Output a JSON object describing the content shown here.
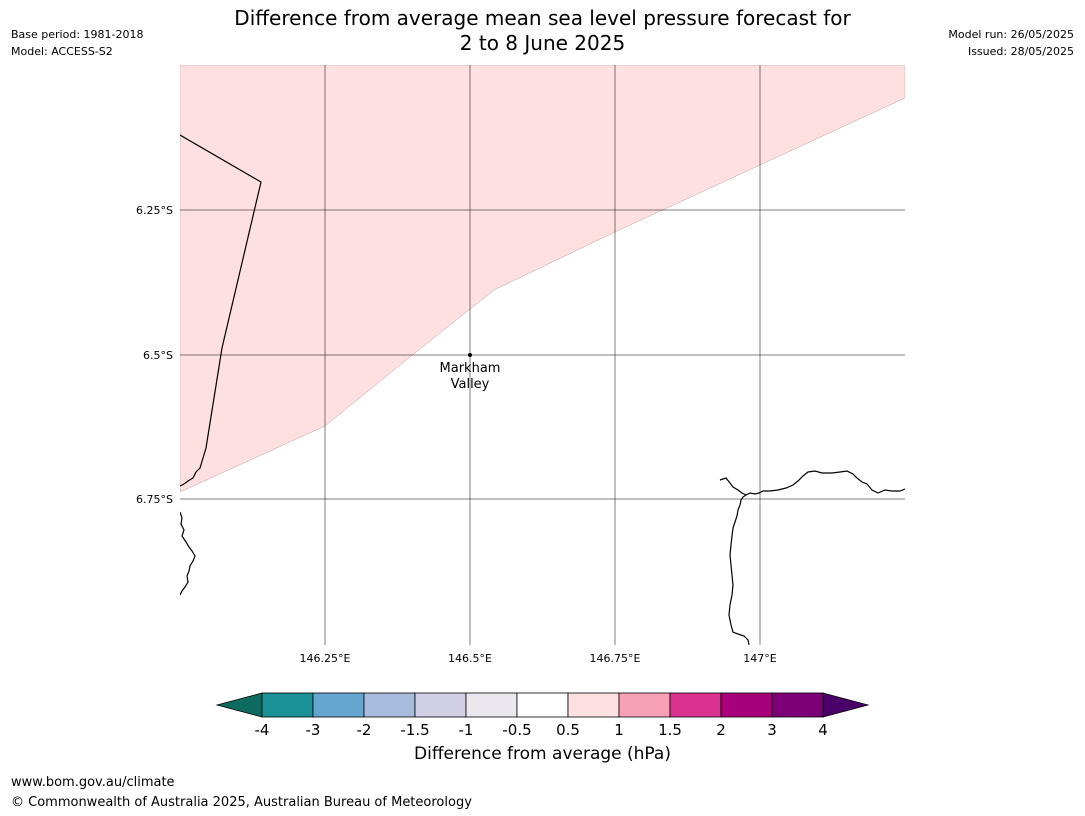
{
  "header": {
    "base_period": "Base period: 1981-2018",
    "model": "Model: ACCESS-S2",
    "model_run": "Model run: 26/05/2025",
    "issued": "Issued: 28/05/2025",
    "title_line1": "Difference from average mean sea level pressure forecast for",
    "title_line2": "2 to 8 June 2025"
  },
  "map": {
    "lon_ticks": [
      "146.25°E",
      "146.5°E",
      "146.75°E",
      "147°E"
    ],
    "lat_ticks": [
      "6.25°S",
      "6.5°S",
      "6.75°S"
    ],
    "place": {
      "name_line1": "Markham",
      "name_line2": "Valley"
    },
    "anomaly_fill_color": "#fde0df"
  },
  "colorbar": {
    "label": "Difference from average (hPa)",
    "tick_labels": [
      "-4",
      "-3",
      "-2",
      "-1.5",
      "-1",
      "-0.5",
      "0.5",
      "1",
      "1.5",
      "2",
      "3",
      "4"
    ],
    "colors": [
      "#0d6b60",
      "#1a9196",
      "#64a6cf",
      "#a7bbdc",
      "#d1cfe6",
      "#eae8ee",
      "#ffffff",
      "#fde0df",
      "#f7a0b6",
      "#d9338f",
      "#a8007a",
      "#7c0177",
      "#4a0069"
    ]
  },
  "footer": {
    "url": "www.bom.gov.au/climate",
    "copyright": "© Commonwealth of Australia 2025, Australian Bureau of Meteorology"
  }
}
